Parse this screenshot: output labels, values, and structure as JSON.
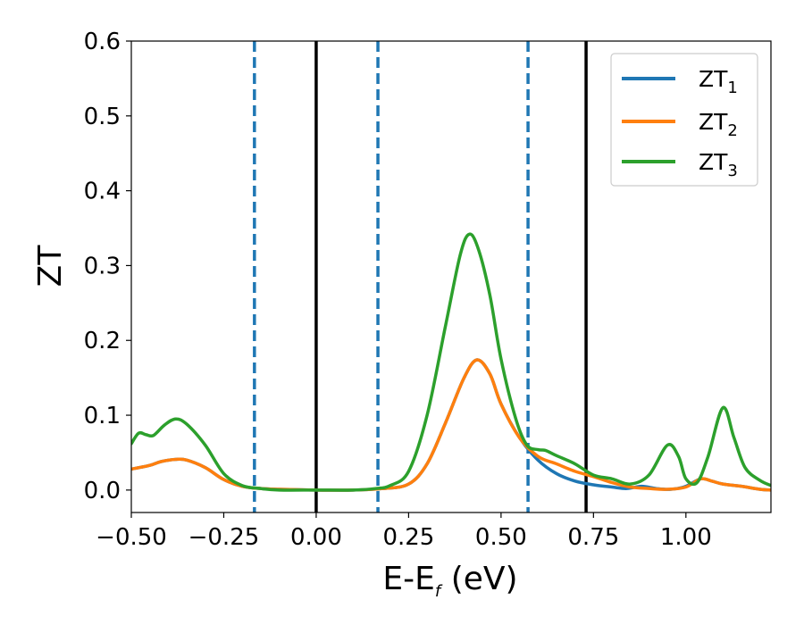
{
  "chart_data": {
    "type": "line",
    "xlabel": {
      "main": "E-E",
      "sub": "f",
      "rest": " (eV)"
    },
    "ylabel": "ZT",
    "xlim": [
      -0.5,
      1.23
    ],
    "ylim": [
      -0.03,
      0.6
    ],
    "xticks": [
      {
        "v": -0.5,
        "label": "−0.50"
      },
      {
        "v": -0.25,
        "label": "−0.25"
      },
      {
        "v": 0.0,
        "label": "0.00"
      },
      {
        "v": 0.25,
        "label": "0.25"
      },
      {
        "v": 0.5,
        "label": "0.50"
      },
      {
        "v": 0.75,
        "label": "0.75"
      },
      {
        "v": 1.0,
        "label": "1.00"
      }
    ],
    "yticks": [
      {
        "v": 0.0,
        "label": "0.0"
      },
      {
        "v": 0.1,
        "label": "0.1"
      },
      {
        "v": 0.2,
        "label": "0.2"
      },
      {
        "v": 0.3,
        "label": "0.3"
      },
      {
        "v": 0.4,
        "label": "0.4"
      },
      {
        "v": 0.5,
        "label": "0.5"
      },
      {
        "v": 0.6,
        "label": "0.6"
      }
    ],
    "vlines": [
      {
        "x": -0.167,
        "style": "dashed",
        "color": "#1f77b4"
      },
      {
        "x": 0.0,
        "style": "solid",
        "color": "#000000"
      },
      {
        "x": 0.167,
        "style": "dashed",
        "color": "#1f77b4"
      },
      {
        "x": 0.573,
        "style": "dashed",
        "color": "#1f77b4"
      },
      {
        "x": 0.73,
        "style": "solid",
        "color": "#000000"
      }
    ],
    "legend_position": "top-right",
    "series": [
      {
        "name": "ZT",
        "sub": "1",
        "color": "#1f77b4",
        "points": [
          [
            -0.5,
            0.028
          ],
          [
            -0.45,
            0.033
          ],
          [
            -0.42,
            0.038
          ],
          [
            -0.38,
            0.041
          ],
          [
            -0.35,
            0.04
          ],
          [
            -0.3,
            0.03
          ],
          [
            -0.25,
            0.014
          ],
          [
            -0.2,
            0.005
          ],
          [
            -0.15,
            0.002
          ],
          [
            -0.1,
            0.001
          ],
          [
            0.0,
            0.0
          ],
          [
            0.1,
            0.0
          ],
          [
            0.18,
            0.002
          ],
          [
            0.25,
            0.008
          ],
          [
            0.3,
            0.035
          ],
          [
            0.35,
            0.09
          ],
          [
            0.4,
            0.15
          ],
          [
            0.435,
            0.174
          ],
          [
            0.47,
            0.155
          ],
          [
            0.5,
            0.115
          ],
          [
            0.55,
            0.07
          ],
          [
            0.6,
            0.04
          ],
          [
            0.65,
            0.022
          ],
          [
            0.7,
            0.012
          ],
          [
            0.75,
            0.007
          ],
          [
            0.8,
            0.004
          ],
          [
            0.84,
            0.002
          ],
          [
            0.88,
            0.005
          ],
          [
            0.92,
            0.002
          ],
          [
            0.96,
            0.001
          ],
          [
            1.0,
            0.005
          ],
          [
            1.04,
            0.015
          ],
          [
            1.07,
            0.012
          ],
          [
            1.1,
            0.008
          ],
          [
            1.15,
            0.005
          ],
          [
            1.2,
            0.001
          ],
          [
            1.23,
            0.0
          ]
        ]
      },
      {
        "name": "ZT",
        "sub": "2",
        "color": "#ff7f0e",
        "points": [
          [
            -0.5,
            0.028
          ],
          [
            -0.45,
            0.033
          ],
          [
            -0.42,
            0.038
          ],
          [
            -0.38,
            0.041
          ],
          [
            -0.35,
            0.04
          ],
          [
            -0.3,
            0.03
          ],
          [
            -0.25,
            0.014
          ],
          [
            -0.2,
            0.005
          ],
          [
            -0.15,
            0.002
          ],
          [
            -0.1,
            0.001
          ],
          [
            0.0,
            0.0
          ],
          [
            0.1,
            0.0
          ],
          [
            0.18,
            0.002
          ],
          [
            0.25,
            0.008
          ],
          [
            0.3,
            0.035
          ],
          [
            0.35,
            0.09
          ],
          [
            0.4,
            0.15
          ],
          [
            0.435,
            0.174
          ],
          [
            0.47,
            0.155
          ],
          [
            0.5,
            0.115
          ],
          [
            0.55,
            0.07
          ],
          [
            0.6,
            0.045
          ],
          [
            0.65,
            0.035
          ],
          [
            0.7,
            0.025
          ],
          [
            0.75,
            0.018
          ],
          [
            0.8,
            0.01
          ],
          [
            0.85,
            0.004
          ],
          [
            0.9,
            0.002
          ],
          [
            0.95,
            0.001
          ],
          [
            1.0,
            0.004
          ],
          [
            1.04,
            0.015
          ],
          [
            1.07,
            0.012
          ],
          [
            1.1,
            0.008
          ],
          [
            1.15,
            0.005
          ],
          [
            1.2,
            0.001
          ],
          [
            1.23,
            0.0
          ]
        ]
      },
      {
        "name": "ZT",
        "sub": "3",
        "color": "#2ca02c",
        "points": [
          [
            -0.5,
            0.062
          ],
          [
            -0.48,
            0.076
          ],
          [
            -0.46,
            0.074
          ],
          [
            -0.44,
            0.073
          ],
          [
            -0.41,
            0.087
          ],
          [
            -0.38,
            0.095
          ],
          [
            -0.35,
            0.088
          ],
          [
            -0.3,
            0.06
          ],
          [
            -0.25,
            0.022
          ],
          [
            -0.2,
            0.006
          ],
          [
            -0.15,
            0.002
          ],
          [
            -0.1,
            0.0
          ],
          [
            0.0,
            0.0
          ],
          [
            0.1,
            0.0
          ],
          [
            0.16,
            0.002
          ],
          [
            0.2,
            0.006
          ],
          [
            0.25,
            0.025
          ],
          [
            0.3,
            0.1
          ],
          [
            0.35,
            0.22
          ],
          [
            0.39,
            0.315
          ],
          [
            0.415,
            0.342
          ],
          [
            0.44,
            0.32
          ],
          [
            0.47,
            0.26
          ],
          [
            0.5,
            0.175
          ],
          [
            0.54,
            0.095
          ],
          [
            0.57,
            0.06
          ],
          [
            0.6,
            0.054
          ],
          [
            0.62,
            0.053
          ],
          [
            0.65,
            0.046
          ],
          [
            0.7,
            0.035
          ],
          [
            0.75,
            0.02
          ],
          [
            0.8,
            0.015
          ],
          [
            0.85,
            0.008
          ],
          [
            0.9,
            0.02
          ],
          [
            0.95,
            0.06
          ],
          [
            0.98,
            0.045
          ],
          [
            1.0,
            0.015
          ],
          [
            1.03,
            0.01
          ],
          [
            1.06,
            0.045
          ],
          [
            1.1,
            0.11
          ],
          [
            1.13,
            0.07
          ],
          [
            1.16,
            0.03
          ],
          [
            1.2,
            0.013
          ],
          [
            1.23,
            0.006
          ]
        ]
      }
    ]
  }
}
